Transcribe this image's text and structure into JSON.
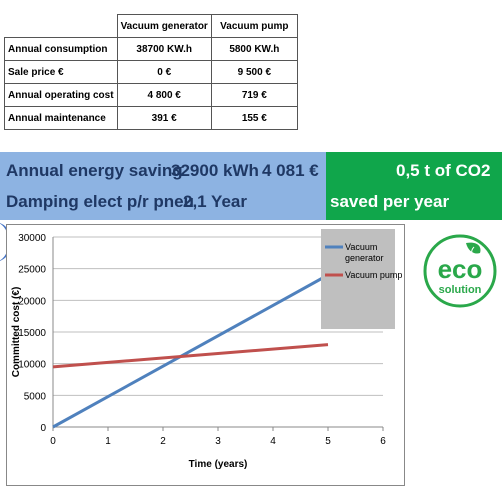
{
  "table": {
    "headers": [
      "",
      "Vacuum generator",
      "Vacuum pump"
    ],
    "rows": [
      {
        "label": "Annual consumption",
        "generator": "38700 KW.h",
        "pump": "5800 KW.h"
      },
      {
        "label": "Sale price €",
        "generator": "0 €",
        "pump": "9 500 €"
      },
      {
        "label": "Annual operating cost",
        "generator": "4 800 €",
        "pump": "719 €"
      },
      {
        "label": "Annual maintenance",
        "generator": "391 €",
        "pump": "155 €"
      }
    ]
  },
  "banner": {
    "energy_label": "Annual energy saving",
    "energy_value": "32900 kWh",
    "money_value": "4 081 €",
    "damping_label": "Damping elect p/r pneu",
    "damping_value": "2,1 Year",
    "co2_value": "0,5 t of CO2",
    "co2_label": "saved per year",
    "blue_color": "#8db3e2",
    "green_color": "#10a64b"
  },
  "logo": {
    "word": "eco",
    "sub": "solution",
    "color": "#2aa84a"
  },
  "chart_data": {
    "type": "line",
    "title": "",
    "xlabel": "Time (years)",
    "ylabel": "Committed cost (€)",
    "xlim": [
      0,
      6
    ],
    "ylim": [
      0,
      30000
    ],
    "x_ticks": [
      0,
      1,
      2,
      3,
      4,
      5,
      6
    ],
    "y_ticks": [
      0,
      5000,
      10000,
      15000,
      20000,
      25000,
      30000
    ],
    "grid": "horizontal",
    "legend_position": "top-right",
    "series": [
      {
        "name": "Vacuum generator",
        "color": "#4f81bd",
        "x": [
          0,
          5
        ],
        "y": [
          0,
          24000
        ]
      },
      {
        "name": "Vacuum pump",
        "color": "#c0504d",
        "x": [
          0,
          5
        ],
        "y": [
          9500,
          13000
        ]
      }
    ]
  }
}
